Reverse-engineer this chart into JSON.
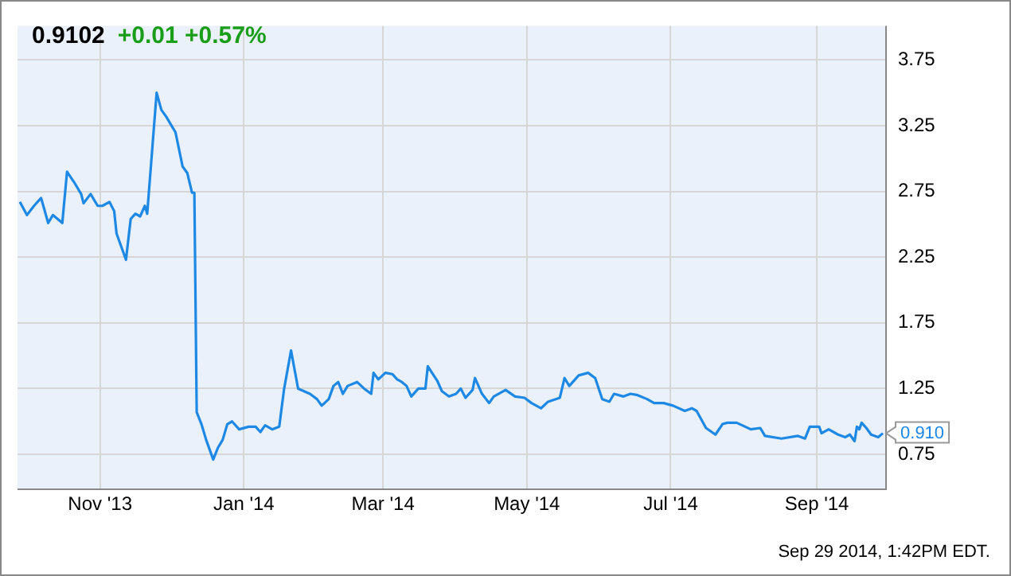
{
  "chart_data": {
    "type": "line",
    "title": "0.9102",
    "subtitle": "+0.01 +0.57%",
    "x": [
      "2013-09-28",
      "2013-10-01",
      "2013-10-04",
      "2013-10-07",
      "2013-10-10",
      "2013-10-12",
      "2013-10-16",
      "2013-10-18",
      "2013-10-21",
      "2013-10-24",
      "2013-10-25",
      "2013-10-28",
      "2013-10-31",
      "2013-11-02",
      "2013-11-05",
      "2013-11-07",
      "2013-11-08",
      "2013-11-10",
      "2013-11-12",
      "2013-11-14",
      "2013-11-16",
      "2013-11-18",
      "2013-11-20",
      "2013-11-21",
      "2013-11-25",
      "2013-11-27",
      "2013-11-29",
      "2013-12-01",
      "2013-12-03",
      "2013-12-06",
      "2013-12-08",
      "2013-12-10",
      "2013-12-11",
      "2013-12-12",
      "2013-12-14",
      "2013-12-16",
      "2013-12-19",
      "2013-12-21",
      "2013-12-23",
      "2013-12-25",
      "2013-12-27",
      "2013-12-30",
      "2014-01-03",
      "2014-01-06",
      "2014-01-08",
      "2014-01-10",
      "2014-01-13",
      "2014-01-16",
      "2014-01-18",
      "2014-01-21",
      "2014-01-24",
      "2014-01-29",
      "2014-02-01",
      "2014-02-03",
      "2014-02-06",
      "2014-02-08",
      "2014-02-10",
      "2014-02-12",
      "2014-02-14",
      "2014-02-18",
      "2014-02-21",
      "2014-02-24",
      "2014-02-25",
      "2014-02-27",
      "2014-03-02",
      "2014-03-05",
      "2014-03-07",
      "2014-03-09",
      "2014-03-11",
      "2014-03-13",
      "2014-03-16",
      "2014-03-19",
      "2014-03-20",
      "2014-03-24",
      "2014-03-26",
      "2014-03-29",
      "2014-04-01",
      "2014-04-03",
      "2014-04-05",
      "2014-04-08",
      "2014-04-09",
      "2014-04-12",
      "2014-04-15",
      "2014-04-17",
      "2014-04-22",
      "2014-04-26",
      "2014-04-30",
      "2014-05-03",
      "2014-05-07",
      "2014-05-10",
      "2014-05-15",
      "2014-05-17",
      "2014-05-19",
      "2014-05-23",
      "2014-05-27",
      "2014-05-30",
      "2014-06-02",
      "2014-06-05",
      "2014-06-07",
      "2014-06-11",
      "2014-06-14",
      "2014-06-17",
      "2014-06-21",
      "2014-06-24",
      "2014-06-28",
      "2014-07-02",
      "2014-07-07",
      "2014-07-10",
      "2014-07-12",
      "2014-07-16",
      "2014-07-20",
      "2014-07-23",
      "2014-07-25",
      "2014-07-29",
      "2014-08-04",
      "2014-08-08",
      "2014-08-10",
      "2014-08-17",
      "2014-08-24",
      "2014-08-27",
      "2014-08-29",
      "2014-09-02",
      "2014-09-03",
      "2014-09-06",
      "2014-09-10",
      "2014-09-13",
      "2014-09-15",
      "2014-09-17",
      "2014-09-18",
      "2014-09-19",
      "2014-09-20",
      "2014-09-22",
      "2014-09-24",
      "2014-09-27",
      "2014-09-29"
    ],
    "series": [
      {
        "color": "#1e88e5",
        "values": [
          2.67,
          2.57,
          2.64,
          2.7,
          2.51,
          2.57,
          2.51,
          2.9,
          2.82,
          2.73,
          2.66,
          2.73,
          2.64,
          2.64,
          2.67,
          2.6,
          2.43,
          2.33,
          2.23,
          2.54,
          2.58,
          2.56,
          2.64,
          2.58,
          3.5,
          3.37,
          3.32,
          3.26,
          3.2,
          2.94,
          2.89,
          2.74,
          2.74,
          1.07,
          0.98,
          0.86,
          0.71,
          0.8,
          0.86,
          0.98,
          1.0,
          0.94,
          0.96,
          0.96,
          0.92,
          0.97,
          0.94,
          0.96,
          1.24,
          1.54,
          1.25,
          1.21,
          1.17,
          1.12,
          1.17,
          1.27,
          1.3,
          1.21,
          1.27,
          1.3,
          1.25,
          1.21,
          1.37,
          1.32,
          1.37,
          1.36,
          1.32,
          1.3,
          1.27,
          1.19,
          1.25,
          1.25,
          1.42,
          1.31,
          1.23,
          1.19,
          1.21,
          1.25,
          1.18,
          1.24,
          1.33,
          1.21,
          1.14,
          1.19,
          1.24,
          1.19,
          1.18,
          1.14,
          1.1,
          1.15,
          1.18,
          1.33,
          1.27,
          1.35,
          1.37,
          1.33,
          1.17,
          1.15,
          1.21,
          1.19,
          1.21,
          1.2,
          1.17,
          1.14,
          1.14,
          1.12,
          1.08,
          1.1,
          1.08,
          0.95,
          0.9,
          0.98,
          0.99,
          0.99,
          0.94,
          0.95,
          0.89,
          0.87,
          0.89,
          0.87,
          0.96,
          0.96,
          0.91,
          0.94,
          0.9,
          0.88,
          0.9,
          0.85,
          0.96,
          0.94,
          0.99,
          0.95,
          0.9,
          0.88,
          0.91
        ]
      }
    ],
    "xlim": [
      "2013-09-27",
      "2014-09-30"
    ],
    "xticks": [
      {
        "value": "2013-11-01",
        "label": "Nov '13"
      },
      {
        "value": "2014-01-01",
        "label": "Jan '14"
      },
      {
        "value": "2014-03-01",
        "label": "Mar '14"
      },
      {
        "value": "2014-05-01",
        "label": "May '14"
      },
      {
        "value": "2014-07-01",
        "label": "Jul '14"
      },
      {
        "value": "2014-09-01",
        "label": "Sep '14"
      }
    ],
    "ylim": [
      0.49,
      4.01
    ],
    "yticks": [
      0.75,
      1.25,
      1.75,
      2.25,
      2.75,
      3.25,
      3.75
    ],
    "grid": true,
    "legend": false,
    "annotations": [
      {
        "text": "0.910",
        "x": "2014-09-29",
        "y": 0.91
      },
      "Sep 29 2014, 1:42PM EDT."
    ]
  }
}
